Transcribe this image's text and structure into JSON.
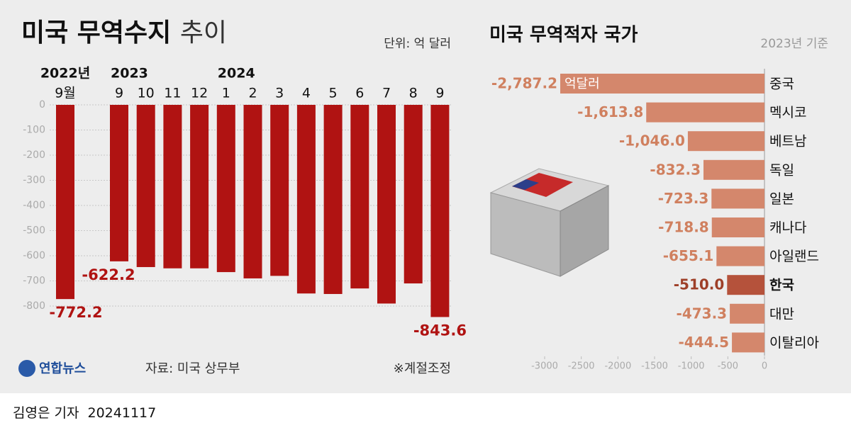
{
  "chart_data": [
    {
      "type": "bar",
      "title": "미국 무역수지",
      "title_light": "추이",
      "unit": "단위: 억 달러",
      "year_labels": [
        "2022년",
        "2023",
        null,
        null,
        null,
        "2024",
        null,
        null,
        null,
        null,
        null,
        null,
        null,
        null
      ],
      "categories": [
        "9월",
        "9",
        "10",
        "11",
        "12",
        "1",
        "2",
        "3",
        "4",
        "5",
        "6",
        "7",
        "8",
        "9"
      ],
      "values": [
        -772.2,
        -622.2,
        -645,
        -650,
        -650,
        -665,
        -690,
        -680,
        -750,
        -752,
        -730,
        -790,
        -710,
        -843.6
      ],
      "value_labels": [
        "-772.2",
        "-622.2",
        null,
        null,
        null,
        null,
        null,
        null,
        null,
        null,
        null,
        null,
        null,
        "-843.6"
      ],
      "color": "#b01312",
      "ylim": [
        -800,
        0
      ],
      "yticks": [
        0,
        -100,
        -200,
        -300,
        -400,
        -500,
        -600,
        -700,
        -800
      ],
      "grid": true,
      "source": "자료: 미국 상무부",
      "note": "※계절조정",
      "logo": "연합뉴스"
    },
    {
      "type": "hbar",
      "title": "미국 무역적자 국가",
      "subtitle": "2023년 기준",
      "unit_label": "억달러",
      "categories": [
        "중국",
        "멕시코",
        "베트남",
        "독일",
        "일본",
        "캐나다",
        "아일랜드",
        "한국",
        "대만",
        "이탈리아"
      ],
      "values": [
        -2787.2,
        -1613.8,
        -1046.0,
        -832.3,
        -723.3,
        -718.8,
        -655.1,
        -510.0,
        -473.3,
        -444.5
      ],
      "value_labels": [
        "-2,787.2",
        "-1,613.8",
        "-1,046.0",
        "-832.3",
        "-723.3",
        "-718.8",
        "-655.1",
        "-510.0",
        "-473.3",
        "-444.5"
      ],
      "color": "#d4876c",
      "highlight": {
        "category": "한국",
        "color": "#b5523b"
      },
      "xlim": [
        -3000,
        0
      ],
      "xticks": [
        -3000,
        -2500,
        -2000,
        -1500,
        -1000,
        -500,
        0
      ],
      "grid": false
    }
  ],
  "byline": "김영은 기자",
  "date": "20241117"
}
